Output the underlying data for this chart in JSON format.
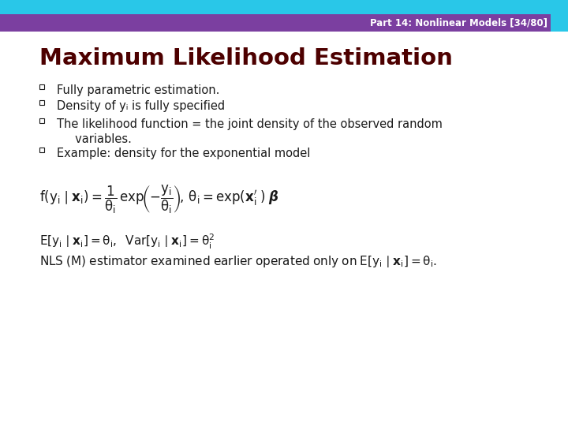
{
  "title": "Maximum Likelihood Estimation",
  "header_text": "Part 14: Nonlinear Models [34/80]",
  "header_bg": "#7B3FA0",
  "header_cyan": "#29C7E8",
  "header_cyan_accent": "#29C7E8",
  "title_color": "#4D0000",
  "bullet_color": "#1a1a1a",
  "bg_color": "#FFFFFF",
  "bullets": [
    "Fully parametric estimation.",
    "Density of yᵢ is fully specified",
    "The likelihood function = the joint density of the observed random\n     variables.",
    "Example: density for the exponential model"
  ]
}
